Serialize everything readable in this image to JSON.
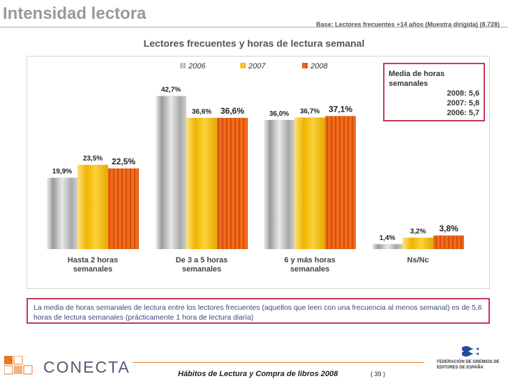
{
  "header": {
    "title": "Intensidad lectora",
    "base": "Base: Lectores frecuentes +14 años (Muestra dirigida) (8.728)"
  },
  "chart_data": {
    "type": "bar",
    "title": "Lectores frecuentes y horas de lectura semanal",
    "categories": [
      "Hasta 2 horas semanales",
      "De 3 a 5 horas semanales",
      "6 y más horas semanales",
      "Ns/Nc"
    ],
    "series": [
      {
        "name": "2006",
        "values": [
          19.9,
          42.7,
          36.0,
          1.4
        ],
        "labels": [
          "19,9%",
          "42,7%",
          "36,0%",
          "1,4%"
        ]
      },
      {
        "name": "2007",
        "values": [
          23.5,
          36.6,
          36.7,
          3.2
        ],
        "labels": [
          "23,5%",
          "36,6%",
          "36,7%",
          "3,2%"
        ]
      },
      {
        "name": "2008",
        "values": [
          22.5,
          36.6,
          37.1,
          3.8
        ],
        "labels": [
          "22,5%",
          "36,6%",
          "37,1%",
          "3,8%"
        ]
      }
    ],
    "ylim": [
      0,
      50
    ],
    "xlabel": "",
    "ylabel": "",
    "legend": "top",
    "grid": false,
    "colors": {
      "2006": "#d9d9d9",
      "2007": "#f7c21a",
      "2008": "#f26a1b"
    }
  },
  "media_box": {
    "title": "Media de horas semanales",
    "rows": [
      "2008: 5,6",
      "2007: 5,8",
      "2006: 5,7"
    ]
  },
  "note": "La media de horas semanales de lectura entre los lectores frecuentes (aquellos que leen con una frecuencia al menos semanal) es de 5,6 horas de lectura semanales (prácticamente 1 hora de lectura diaria)",
  "footer": {
    "brand": "CONECTA",
    "text": "Hábitos de Lectura y Compra de libros 2008",
    "page": "( 39 )",
    "federation": "FEDERACIÓN DE GREMIOS DE EDITORES DE ESPAÑA"
  }
}
